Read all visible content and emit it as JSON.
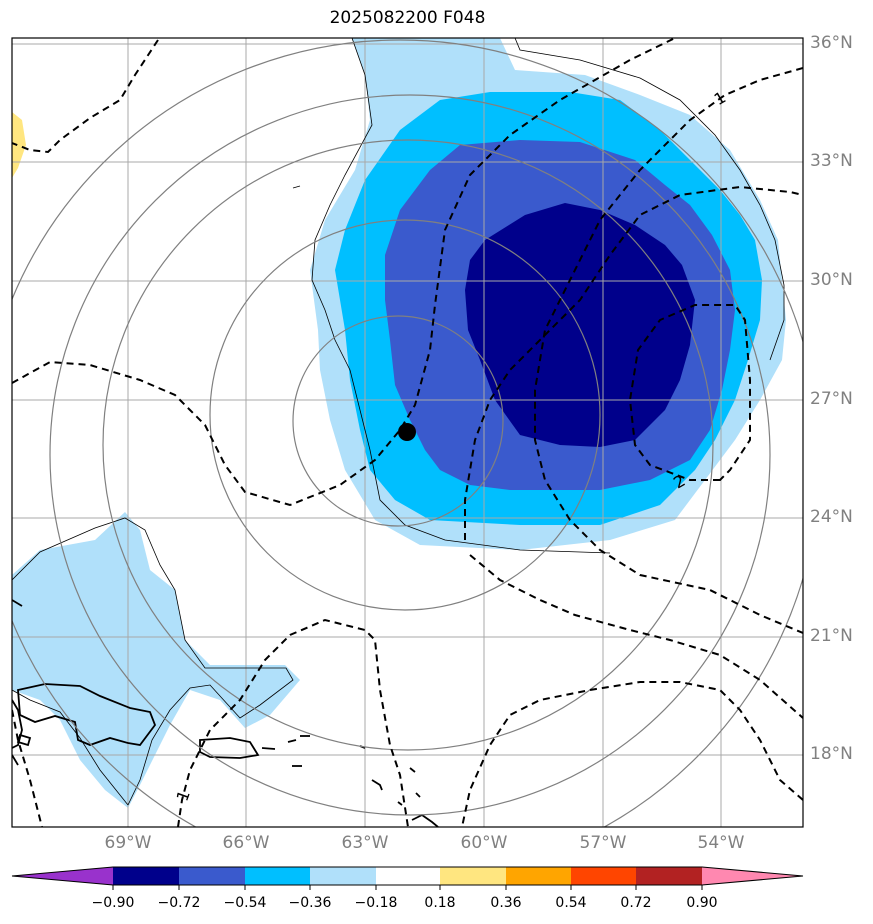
{
  "title": "2025082200 F048",
  "map": {
    "lat_labels": [
      "36°N",
      "33°N",
      "30°N",
      "27°N",
      "24°N",
      "21°N",
      "18°N"
    ],
    "lon_labels": [
      "69°W",
      "66°W",
      "63°W",
      "60°W",
      "57°W",
      "54°W"
    ],
    "contour_labels": [
      "1",
      "2",
      "1"
    ],
    "storm_center": {
      "lat": 26.2,
      "lon": -62.0
    }
  },
  "colorbar": {
    "ticks": [
      "−0.90",
      "−0.72",
      "−0.54",
      "−0.36",
      "−0.18",
      "0.18",
      "0.36",
      "0.54",
      "0.72",
      "0.90"
    ],
    "colors": [
      "#9932cc",
      "#00008b",
      "#3a5acd",
      "#00bfff",
      "#b0e0fa",
      "#ffffff",
      "#ffe680",
      "#ffa500",
      "#ff4500",
      "#b22222",
      "#ff88b0"
    ]
  }
}
